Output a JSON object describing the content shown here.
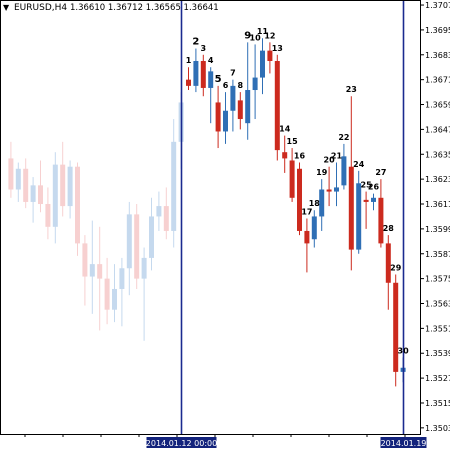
{
  "header": {
    "arrow": "▼",
    "symbol": "EURUSD,H4",
    "ohlc": "1.36610 1.36712 1.36565 1.36641"
  },
  "colors": {
    "bull": "#2f6fb5",
    "bear": "#cc2a1e",
    "bull_faded": "#c5d9ee",
    "bear_faded": "#f7d0d0",
    "vline": "#1b2a8f",
    "axis": "#000000",
    "date_label_bg": "#13237c"
  },
  "chart_data": {
    "type": "candlestick",
    "title": "EURUSD,H4",
    "ylim": [
      1.3501,
      1.37075
    ],
    "y_ticks": [
      "1.37070",
      "1.36950",
      "1.36830",
      "1.36710",
      "1.36590",
      "1.36470",
      "1.36350",
      "1.36230",
      "1.36110",
      "1.35990",
      "1.35870",
      "1.35750",
      "1.35630",
      "1.35510",
      "1.35390",
      "1.35270",
      "1.35150",
      "1.35030"
    ],
    "markers": [
      {
        "label": "2014.01.12 00:00",
        "index": 0
      },
      {
        "label": "2014.01.19",
        "index": 30
      }
    ],
    "context_candles": [
      {
        "o": 1.3633,
        "h": 1.3641,
        "l": 1.3614,
        "c": 1.3618
      },
      {
        "o": 1.3618,
        "h": 1.3631,
        "l": 1.3612,
        "c": 1.3628
      },
      {
        "o": 1.3628,
        "h": 1.3633,
        "l": 1.3609,
        "c": 1.3612
      },
      {
        "o": 1.3612,
        "h": 1.3624,
        "l": 1.3602,
        "c": 1.362
      },
      {
        "o": 1.362,
        "h": 1.3632,
        "l": 1.3607,
        "c": 1.3611
      },
      {
        "o": 1.3611,
        "h": 1.3619,
        "l": 1.3594,
        "c": 1.36
      },
      {
        "o": 1.36,
        "h": 1.3636,
        "l": 1.3592,
        "c": 1.363
      },
      {
        "o": 1.363,
        "h": 1.3641,
        "l": 1.3605,
        "c": 1.361
      },
      {
        "o": 1.361,
        "h": 1.3632,
        "l": 1.3604,
        "c": 1.3629
      },
      {
        "o": 1.3629,
        "h": 1.3631,
        "l": 1.3586,
        "c": 1.3592
      },
      {
        "o": 1.3592,
        "h": 1.3596,
        "l": 1.3562,
        "c": 1.3576
      },
      {
        "o": 1.3576,
        "h": 1.3603,
        "l": 1.3558,
        "c": 1.3582
      },
      {
        "o": 1.3582,
        "h": 1.36,
        "l": 1.355,
        "c": 1.3575
      },
      {
        "o": 1.3575,
        "h": 1.3585,
        "l": 1.3553,
        "c": 1.356
      },
      {
        "o": 1.356,
        "h": 1.3582,
        "l": 1.3554,
        "c": 1.357
      },
      {
        "o": 1.357,
        "h": 1.3585,
        "l": 1.3552,
        "c": 1.358
      },
      {
        "o": 1.358,
        "h": 1.3612,
        "l": 1.3567,
        "c": 1.3606
      },
      {
        "o": 1.3606,
        "h": 1.3611,
        "l": 1.357,
        "c": 1.3575
      },
      {
        "o": 1.3575,
        "h": 1.359,
        "l": 1.3545,
        "c": 1.3585
      },
      {
        "o": 1.3585,
        "h": 1.3614,
        "l": 1.3579,
        "c": 1.3605
      },
      {
        "o": 1.3605,
        "h": 1.3617,
        "l": 1.3598,
        "c": 1.361
      },
      {
        "o": 1.361,
        "h": 1.3619,
        "l": 1.3594,
        "c": 1.3598
      },
      {
        "o": 1.3598,
        "h": 1.3652,
        "l": 1.359,
        "c": 1.3641
      },
      {
        "o": 1.3641,
        "h": 1.3665,
        "l": 1.3628,
        "c": 1.366
      }
    ],
    "candles": [
      {
        "label": "1",
        "o": 1.3671,
        "h": 1.3677,
        "l": 1.3666,
        "c": 1.3668
      },
      {
        "label": "2",
        "o": 1.3668,
        "h": 1.3686,
        "l": 1.3665,
        "c": 1.368
      },
      {
        "label": "3",
        "o": 1.368,
        "h": 1.3683,
        "l": 1.3663,
        "c": 1.3667
      },
      {
        "label": "4",
        "o": 1.3667,
        "h": 1.3677,
        "l": 1.365,
        "c": 1.3675
      },
      {
        "label": "5",
        "o": 1.366,
        "h": 1.3668,
        "l": 1.3638,
        "c": 1.3646
      },
      {
        "label": "6",
        "o": 1.3646,
        "h": 1.3665,
        "l": 1.364,
        "c": 1.3656
      },
      {
        "label": "7",
        "o": 1.3656,
        "h": 1.3671,
        "l": 1.3646,
        "c": 1.3668
      },
      {
        "label": "8",
        "o": 1.3661,
        "h": 1.3665,
        "l": 1.3647,
        "c": 1.3652
      },
      {
        "label": "9",
        "o": 1.365,
        "h": 1.3689,
        "l": 1.3642,
        "c": 1.3666
      },
      {
        "label": "10",
        "o": 1.3666,
        "h": 1.3688,
        "l": 1.3652,
        "c": 1.3672
      },
      {
        "label": "11",
        "o": 1.3672,
        "h": 1.3691,
        "l": 1.3664,
        "c": 1.3685
      },
      {
        "label": "12",
        "o": 1.3685,
        "h": 1.3689,
        "l": 1.3674,
        "c": 1.368
      },
      {
        "label": "13",
        "o": 1.368,
        "h": 1.3683,
        "l": 1.3632,
        "c": 1.3637
      },
      {
        "label": "14",
        "o": 1.3636,
        "h": 1.3644,
        "l": 1.3626,
        "c": 1.3633
      },
      {
        "label": "15",
        "o": 1.3632,
        "h": 1.3638,
        "l": 1.3612,
        "c": 1.3614
      },
      {
        "label": "16",
        "o": 1.3628,
        "h": 1.3631,
        "l": 1.3596,
        "c": 1.3598
      },
      {
        "label": "17",
        "o": 1.3598,
        "h": 1.3604,
        "l": 1.3578,
        "c": 1.3592
      },
      {
        "label": "18",
        "o": 1.3594,
        "h": 1.3608,
        "l": 1.359,
        "c": 1.3605
      },
      {
        "label": "19",
        "o": 1.3605,
        "h": 1.3623,
        "l": 1.3598,
        "c": 1.3618
      },
      {
        "label": "20",
        "o": 1.3618,
        "h": 1.3629,
        "l": 1.361,
        "c": 1.3617
      },
      {
        "label": "21",
        "o": 1.3617,
        "h": 1.3631,
        "l": 1.361,
        "c": 1.3619
      },
      {
        "label": "22",
        "o": 1.362,
        "h": 1.364,
        "l": 1.3618,
        "c": 1.3634
      },
      {
        "label": "23",
        "o": 1.3629,
        "h": 1.3663,
        "l": 1.3579,
        "c": 1.3589
      },
      {
        "label": "24",
        "o": 1.3589,
        "h": 1.3627,
        "l": 1.3587,
        "c": 1.3621
      },
      {
        "label": "25",
        "o": 1.3613,
        "h": 1.3617,
        "l": 1.3599,
        "c": 1.3612
      },
      {
        "label": "26",
        "o": 1.3612,
        "h": 1.3616,
        "l": 1.3608,
        "c": 1.3614
      },
      {
        "label": "27",
        "o": 1.3614,
        "h": 1.3623,
        "l": 1.359,
        "c": 1.3592
      },
      {
        "label": "28",
        "o": 1.3592,
        "h": 1.3596,
        "l": 1.356,
        "c": 1.3573
      },
      {
        "label": "29",
        "o": 1.3573,
        "h": 1.3577,
        "l": 1.3523,
        "c": 1.353
      },
      {
        "label": "30",
        "o": 1.353,
        "h": 1.3537,
        "l": 1.3525,
        "c": 1.3532
      }
    ]
  }
}
